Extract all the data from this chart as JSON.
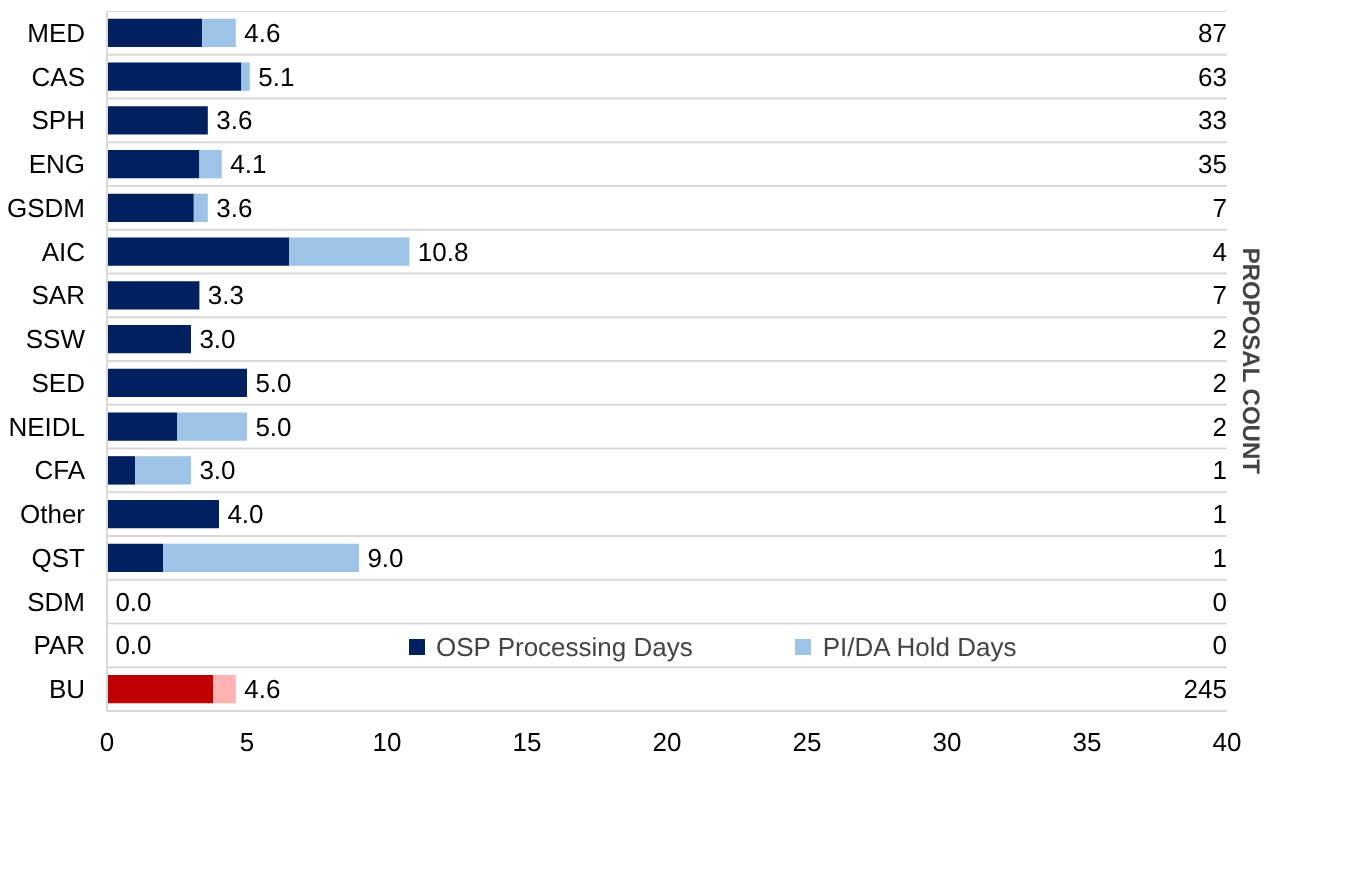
{
  "chart_data": {
    "type": "bar",
    "orientation": "horizontal",
    "stacked": true,
    "categories": [
      "MED",
      "CAS",
      "SPH",
      "ENG",
      "GSDM",
      "AIC",
      "SAR",
      "SSW",
      "SED",
      "NEIDL",
      "CFA",
      "Other",
      "QST",
      "SDM",
      "PAR",
      "BU"
    ],
    "series": [
      {
        "name": "OSP Processing Days",
        "color": "#002060",
        "colors": [
          null,
          null,
          null,
          null,
          null,
          null,
          null,
          null,
          null,
          null,
          null,
          null,
          null,
          null,
          null,
          "#c00000"
        ],
        "values": [
          3.4,
          4.8,
          3.6,
          3.3,
          3.1,
          6.5,
          3.3,
          3.0,
          5.0,
          2.5,
          1.0,
          4.0,
          2.0,
          0,
          0,
          3.8
        ]
      },
      {
        "name": "PI/DA Hold Days",
        "color": "#9dc3e6",
        "colors": [
          null,
          null,
          null,
          null,
          null,
          null,
          null,
          null,
          null,
          null,
          null,
          null,
          null,
          null,
          null,
          "#ffb3b3"
        ],
        "values": [
          1.2,
          0.3,
          0,
          0.8,
          0.5,
          4.3,
          0,
          0,
          0,
          2.5,
          2.0,
          0,
          7.0,
          0,
          0,
          0.8
        ]
      }
    ],
    "totals": [
      "4.6",
      "5.1",
      "3.6",
      "4.1",
      "3.6",
      "10.8",
      "3.3",
      "3.0",
      "5.0",
      "5.0",
      "3.0",
      "4.0",
      "9.0",
      "0.0",
      "0.0",
      "4.6"
    ],
    "xlim": [
      0,
      40
    ],
    "xticks": [
      0,
      5,
      10,
      15,
      20,
      25,
      30,
      35,
      40
    ],
    "y2label": "PROPOSAL COUNT",
    "annotations": [
      "87",
      "63",
      "33",
      "35",
      "7",
      "4",
      "7",
      "2",
      "2",
      "2",
      "1",
      "1",
      "1",
      "0",
      "0",
      "245"
    ],
    "grid": "y",
    "legend": "bottom"
  }
}
